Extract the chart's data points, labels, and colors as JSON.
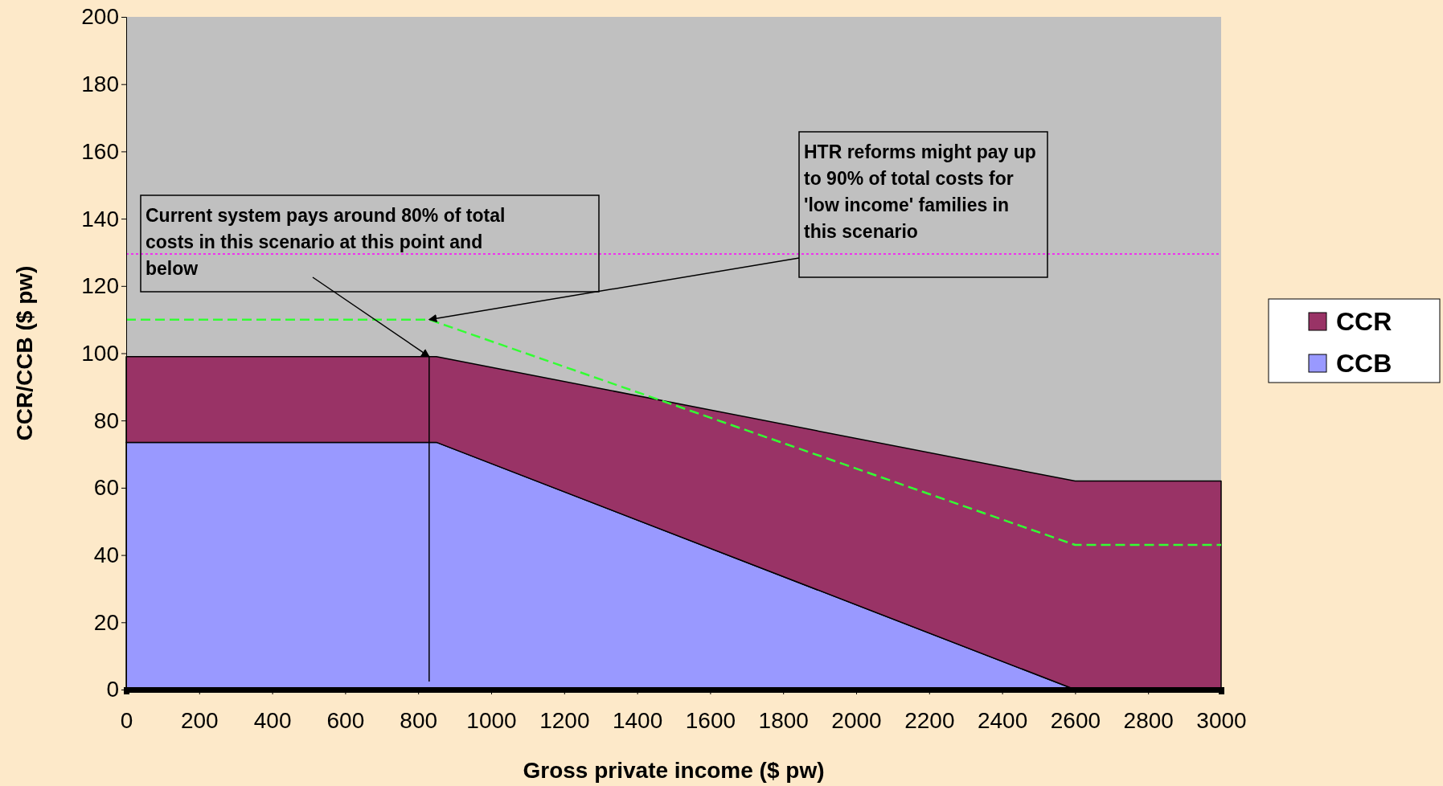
{
  "chart_data": {
    "type": "area",
    "stacked": true,
    "xlabel": "Gross private income ($ pw)",
    "ylabel": "CCR/CCB ($ pw)",
    "x": [
      0,
      850,
      2600,
      3000
    ],
    "series": [
      {
        "name": "CCB",
        "color": "#9999ff",
        "values": [
          73.5,
          73.5,
          0,
          0
        ]
      },
      {
        "name": "CCR",
        "color": "#993366",
        "values": [
          25.5,
          25.5,
          62,
          62
        ]
      },
      {
        "type": "line",
        "color": "#33ff33",
        "line_style": "dashed",
        "x": [
          0,
          830,
          2600,
          3000
        ],
        "values": [
          110,
          110,
          43,
          43
        ]
      }
    ],
    "ref_lines": [
      {
        "axis": "y",
        "value": 129.5,
        "color": "#ff00ff",
        "line_style": "dotted"
      }
    ],
    "annotations": [
      {
        "text": "Current system pays around 80% of total costs in this scenario at this point and below",
        "x": 830,
        "y": 99
      },
      {
        "text": "HTR reforms might pay up to 90% of total costs for 'low income' families in this scenario",
        "x": 830,
        "y": 110
      }
    ],
    "xlim": [
      0,
      3000
    ],
    "xticks": [
      0,
      200,
      400,
      600,
      800,
      1000,
      1200,
      1400,
      1600,
      1800,
      2000,
      2200,
      2400,
      2600,
      2800,
      3000
    ],
    "ylim": [
      0,
      200
    ],
    "yticks": [
      0,
      20,
      40,
      60,
      80,
      100,
      120,
      140,
      160,
      180,
      200
    ],
    "legend": "right"
  }
}
